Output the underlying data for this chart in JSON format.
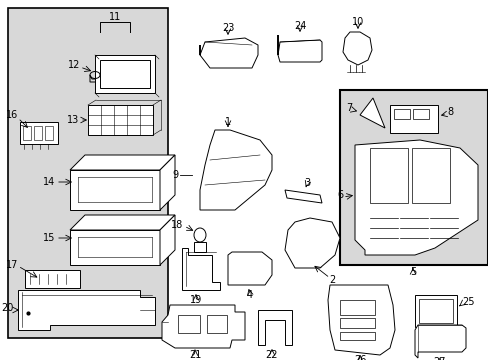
{
  "bg_color": "#ffffff",
  "line_color": "#000000",
  "shade_color": "#d8d8d8",
  "lw": 0.7,
  "figsize": [
    4.89,
    3.6
  ],
  "dpi": 100
}
